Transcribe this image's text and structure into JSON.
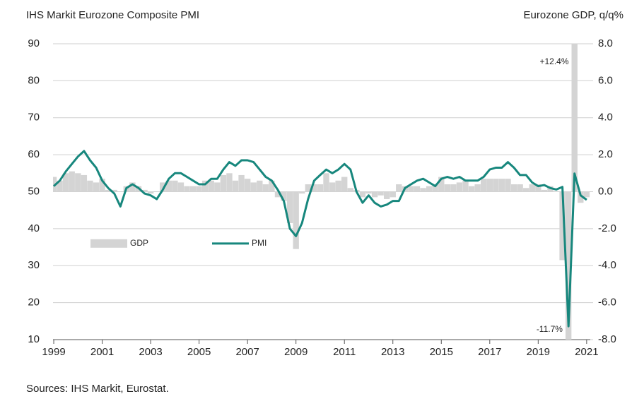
{
  "chart_data": {
    "type": "bar-line",
    "title": "IHS Markit Eurozone Composite PMI",
    "y2_label": "Eurozone GDP, q/q%",
    "source": "Sources: IHS Markit, Eurostat.",
    "x": [
      1999,
      1999.25,
      1999.5,
      1999.75,
      2000,
      2000.25,
      2000.5,
      2000.75,
      2001,
      2001.25,
      2001.5,
      2001.75,
      2002,
      2002.25,
      2002.5,
      2002.75,
      2003,
      2003.25,
      2003.5,
      2003.75,
      2004,
      2004.25,
      2004.5,
      2004.75,
      2005,
      2005.25,
      2005.5,
      2005.75,
      2006,
      2006.25,
      2006.5,
      2006.75,
      2007,
      2007.25,
      2007.5,
      2007.75,
      2008,
      2008.25,
      2008.5,
      2008.75,
      2009,
      2009.25,
      2009.5,
      2009.75,
      2010,
      2010.25,
      2010.5,
      2010.75,
      2011,
      2011.25,
      2011.5,
      2011.75,
      2012,
      2012.25,
      2012.5,
      2012.75,
      2013,
      2013.25,
      2013.5,
      2013.75,
      2014,
      2014.25,
      2014.5,
      2014.75,
      2015,
      2015.25,
      2015.5,
      2015.75,
      2016,
      2016.25,
      2016.5,
      2016.75,
      2017,
      2017.25,
      2017.5,
      2017.75,
      2018,
      2018.25,
      2018.5,
      2018.75,
      2019,
      2019.25,
      2019.5,
      2019.75,
      2020,
      2020.25,
      2020.5,
      2020.75,
      2021
    ],
    "xlim": [
      1998.97,
      2021.15
    ],
    "xticks": [
      1999,
      2001,
      2003,
      2005,
      2007,
      2009,
      2011,
      2013,
      2015,
      2017,
      2019,
      2021
    ],
    "ylim": [
      10,
      90
    ],
    "yticks": [
      10,
      20,
      30,
      40,
      50,
      60,
      70,
      80,
      90
    ],
    "y2lim": [
      -8,
      8
    ],
    "y2ticks": [
      {
        "value": -8,
        "label": "-8.0"
      },
      {
        "value": -6,
        "label": "-6.0"
      },
      {
        "value": -4,
        "label": "-4.0"
      },
      {
        "value": -2,
        "label": "-2.0"
      },
      {
        "value": 0,
        "label": "0.0"
      },
      {
        "value": 2,
        "label": "2.0"
      },
      {
        "value": 4,
        "label": "4.0"
      },
      {
        "value": 6,
        "label": "6.0"
      },
      {
        "value": 8,
        "label": "8.0"
      }
    ],
    "grid": true,
    "legend": "middle left",
    "series": [
      {
        "name": "GDP",
        "type": "bar",
        "axis": "y2",
        "color": "#d4d4d4",
        "values": [
          0.8,
          0.6,
          1.0,
          1.1,
          1.0,
          0.9,
          0.6,
          0.5,
          0.7,
          0.1,
          0.1,
          0.0,
          0.3,
          0.5,
          0.3,
          0.1,
          -0.1,
          0.0,
          0.5,
          0.6,
          0.6,
          0.5,
          0.3,
          0.3,
          0.3,
          0.6,
          0.6,
          0.5,
          0.9,
          1.0,
          0.6,
          0.9,
          0.7,
          0.5,
          0.6,
          0.4,
          0.6,
          -0.3,
          -0.5,
          -1.7,
          -3.1,
          -0.1,
          0.4,
          0.4,
          0.4,
          1.0,
          0.5,
          0.6,
          0.8,
          0.2,
          0.1,
          -0.3,
          -0.1,
          -0.3,
          -0.2,
          -0.4,
          -0.3,
          0.4,
          0.3,
          0.3,
          0.3,
          0.2,
          0.3,
          0.4,
          0.8,
          0.4,
          0.4,
          0.5,
          0.6,
          0.3,
          0.4,
          0.7,
          0.7,
          0.7,
          0.7,
          0.7,
          0.4,
          0.4,
          0.2,
          0.4,
          0.4,
          0.1,
          0.3,
          0.0,
          -3.7,
          -11.7,
          12.4,
          -0.6,
          -0.3
        ],
        "value_labels": [
          null,
          null,
          null,
          null,
          null,
          null,
          null,
          null,
          null,
          null,
          null,
          null,
          null,
          null,
          null,
          null,
          null,
          null,
          null,
          null,
          null,
          null,
          null,
          null,
          null,
          null,
          null,
          null,
          null,
          null,
          null,
          null,
          null,
          null,
          null,
          null,
          null,
          null,
          null,
          null,
          null,
          null,
          null,
          null,
          null,
          null,
          null,
          null,
          null,
          null,
          null,
          null,
          null,
          null,
          null,
          null,
          null,
          null,
          null,
          null,
          null,
          null,
          null,
          null,
          null,
          null,
          null,
          null,
          null,
          null,
          null,
          null,
          null,
          null,
          null,
          null,
          null,
          null,
          null,
          null,
          null,
          null,
          null,
          null,
          null,
          "-11.7%",
          "+12.4%",
          null,
          null
        ]
      },
      {
        "name": "PMI",
        "type": "line",
        "axis": "y",
        "color": "#17877d",
        "values": [
          51.5,
          53,
          55.5,
          57.5,
          59.5,
          61,
          58.5,
          56.5,
          53,
          51,
          49.5,
          46,
          51,
          52,
          51,
          49.5,
          49,
          48,
          50.5,
          53.5,
          55,
          55,
          54,
          53,
          52,
          52,
          53.5,
          53.5,
          56,
          58,
          57,
          58.5,
          58.5,
          58,
          56,
          54,
          53,
          50.5,
          47.5,
          40,
          38,
          41.5,
          48,
          53,
          54.5,
          56,
          55,
          56,
          57.5,
          56,
          50,
          47,
          49,
          47,
          46,
          46.5,
          47.5,
          47.5,
          51,
          52,
          53,
          53.5,
          52.5,
          51.5,
          53.5,
          54,
          53.5,
          54,
          53,
          53,
          53,
          54,
          56,
          56.5,
          56.5,
          58,
          56.5,
          54.5,
          54.5,
          52.5,
          51.5,
          51.8,
          51,
          50.6,
          51.3,
          13.6,
          54.9,
          49,
          47.8
        ]
      }
    ]
  }
}
